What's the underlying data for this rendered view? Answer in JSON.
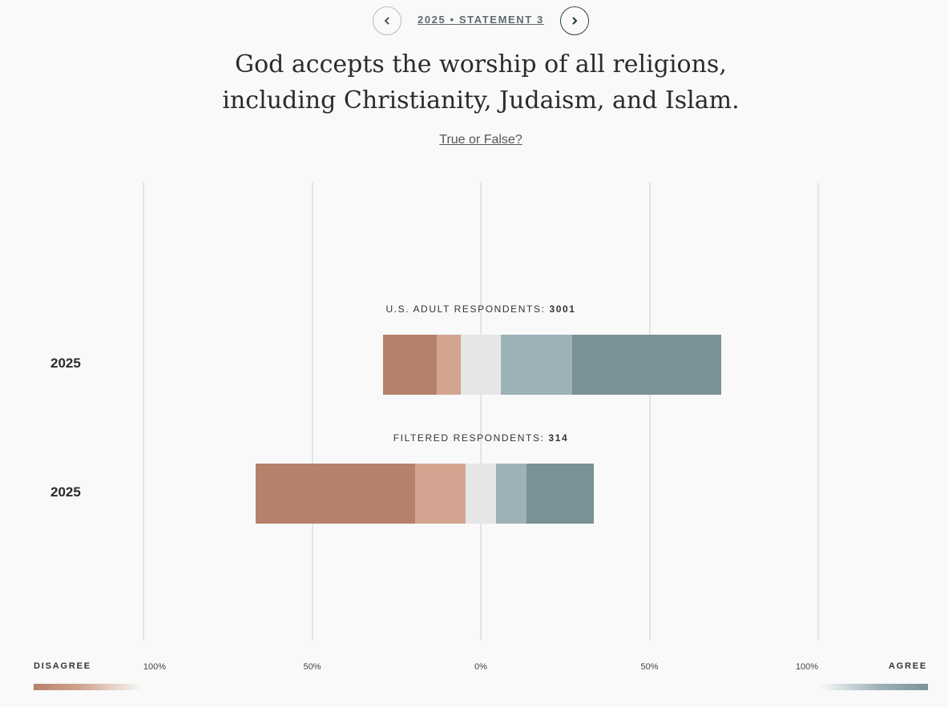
{
  "nav": {
    "label": "2025 • STATEMENT 3",
    "prev_icon": "chevron-left-icon",
    "next_icon": "chevron-right-icon"
  },
  "title": "God accepts the worship of all religions, including Christianity, Judaism, and Islam.",
  "answer_link": "True or False?",
  "legend": {
    "left": "DISAGREE",
    "right": "AGREE"
  },
  "colors": {
    "strongly_disagree": "#b5816a",
    "disagree": "#d3a591",
    "neutral": "#e6e6e6",
    "agree": "#9db1b8",
    "strongly_agree": "#7a9297"
  },
  "chart_data": {
    "type": "bar",
    "orientation": "horizontal-diverging-stacked",
    "ticks": [
      "100%",
      "50%",
      "0%",
      "50%",
      "100%"
    ],
    "xlim": [
      -100,
      100
    ],
    "segments": [
      "strongly_disagree",
      "disagree",
      "neutral",
      "agree",
      "strongly_agree"
    ],
    "groups": [
      {
        "label": "U.S. ADULT RESPONDENTS: ",
        "count": "3001",
        "year": "2025",
        "values": [
          15.9,
          7.2,
          11.9,
          21.1,
          44.2
        ]
      },
      {
        "label": "FILTERED RESPONDENTS: ",
        "count": "314",
        "year": "2025",
        "values": [
          47.3,
          14.9,
          9.0,
          9.0,
          20.0
        ]
      }
    ]
  }
}
